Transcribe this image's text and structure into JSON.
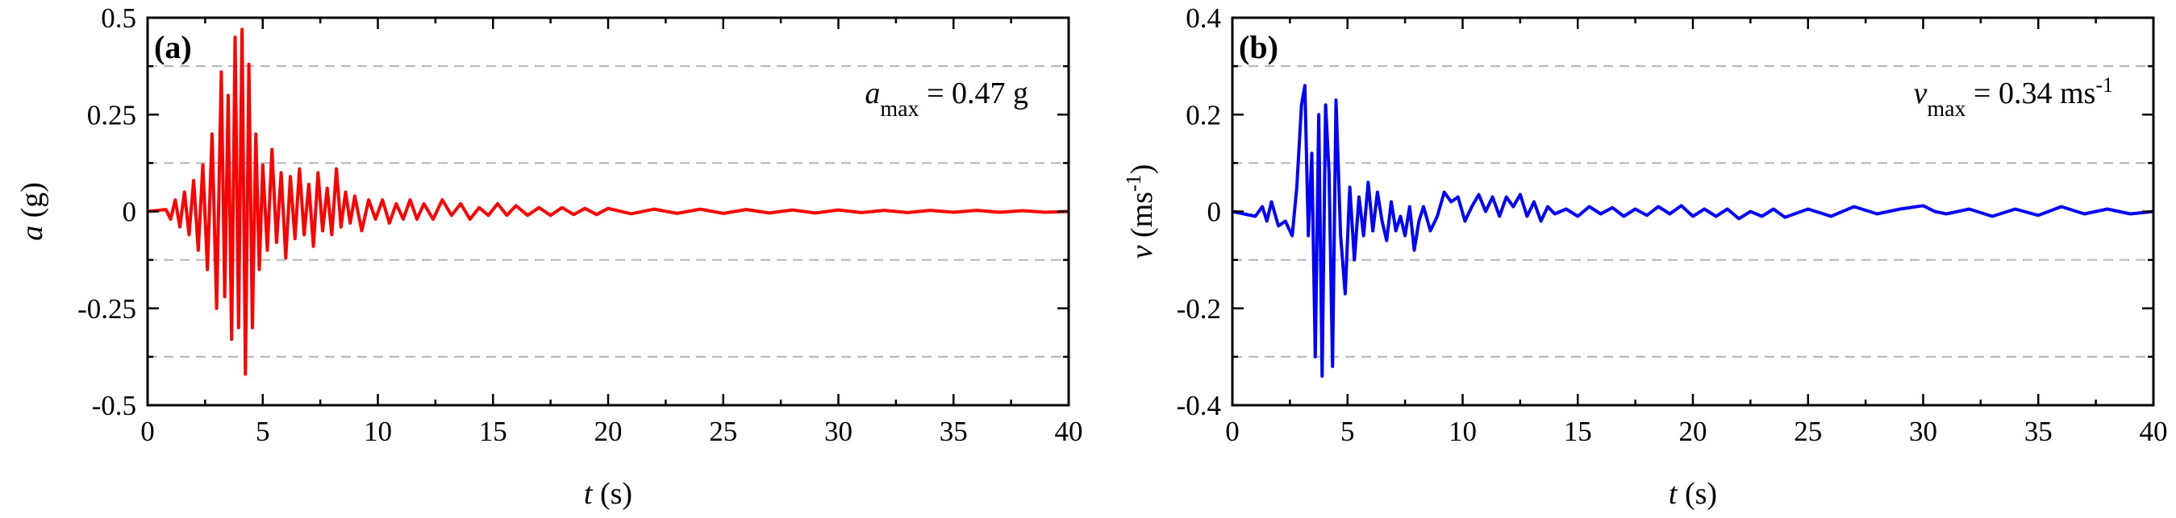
{
  "chart_data": [
    {
      "type": "line",
      "panel_tag": "(a)",
      "xlabel": {
        "italic": "t",
        "rest": " (s)"
      },
      "ylabel": {
        "italic": "a",
        "rest": " (g)"
      },
      "xlim": [
        0,
        40
      ],
      "ylim": [
        -0.5,
        0.5
      ],
      "xticks": [
        "0",
        "5",
        "10",
        "15",
        "20",
        "25",
        "30",
        "35",
        "40"
      ],
      "yticks": [
        "0.5",
        "0.25",
        "0",
        "-0.25",
        "-0.5"
      ],
      "ytick_values": [
        0.5,
        0.25,
        0,
        -0.25,
        -0.5
      ],
      "grid_values": [
        0.375,
        0.125,
        -0.125,
        -0.375
      ],
      "grid": "horizontal dashed",
      "annotation": {
        "base": "a",
        "sub": "max",
        "rest": " = 0.47 g",
        "sup": ""
      },
      "series": [
        {
          "color": "#ff0000",
          "x": [
            0,
            0.8,
            1.0,
            1.2,
            1.4,
            1.6,
            1.8,
            2.0,
            2.2,
            2.4,
            2.6,
            2.8,
            3.0,
            3.2,
            3.35,
            3.5,
            3.65,
            3.8,
            3.95,
            4.1,
            4.25,
            4.4,
            4.55,
            4.7,
            4.85,
            5.0,
            5.2,
            5.4,
            5.6,
            5.8,
            6.0,
            6.2,
            6.4,
            6.6,
            6.8,
            7.0,
            7.2,
            7.4,
            7.6,
            7.8,
            8.0,
            8.2,
            8.4,
            8.6,
            8.8,
            9.0,
            9.3,
            9.6,
            9.9,
            10.2,
            10.5,
            10.8,
            11.1,
            11.4,
            11.7,
            12.0,
            12.4,
            12.8,
            13.2,
            13.6,
            14.0,
            14.4,
            14.8,
            15.2,
            15.6,
            16.0,
            16.5,
            17.0,
            17.5,
            18.0,
            18.5,
            19.0,
            19.5,
            20.0,
            21.0,
            22.0,
            23.0,
            24.0,
            25.0,
            26.0,
            27.0,
            28.0,
            29.0,
            30.0,
            31.0,
            32.0,
            33.0,
            34.0,
            35.0,
            36.0,
            37.0,
            38.0,
            39.0,
            40.0
          ],
          "y": [
            0,
            0.005,
            -0.02,
            0.03,
            -0.04,
            0.05,
            -0.06,
            0.08,
            -0.1,
            0.12,
            -0.15,
            0.2,
            -0.25,
            0.36,
            -0.22,
            0.3,
            -0.33,
            0.45,
            -0.3,
            0.47,
            -0.42,
            0.38,
            -0.3,
            0.2,
            -0.15,
            0.12,
            -0.1,
            0.16,
            -0.08,
            0.1,
            -0.12,
            0.09,
            -0.07,
            0.11,
            -0.06,
            0.07,
            -0.09,
            0.1,
            -0.05,
            0.06,
            -0.06,
            0.11,
            -0.04,
            0.05,
            -0.03,
            0.04,
            -0.05,
            0.03,
            -0.02,
            0.03,
            -0.03,
            0.02,
            -0.02,
            0.03,
            -0.02,
            0.02,
            -0.02,
            0.03,
            -0.01,
            0.02,
            -0.02,
            0.01,
            -0.01,
            0.02,
            -0.01,
            0.015,
            -0.01,
            0.01,
            -0.01,
            0.01,
            -0.008,
            0.008,
            -0.008,
            0.008,
            -0.006,
            0.006,
            -0.005,
            0.006,
            -0.005,
            0.005,
            -0.004,
            0.004,
            -0.004,
            0.004,
            -0.003,
            0.003,
            -0.003,
            0.003,
            -0.002,
            0.003,
            -0.002,
            0.002,
            -0.002,
            0
          ]
        }
      ]
    },
    {
      "type": "line",
      "panel_tag": "(b)",
      "xlabel": {
        "italic": "t",
        "rest": " (s)"
      },
      "ylabel": {
        "italic": "v",
        "rest": " (ms",
        "sup": "-1",
        "close": ")"
      },
      "xlim": [
        0,
        40
      ],
      "ylim": [
        -0.4,
        0.4
      ],
      "xticks": [
        "0",
        "5",
        "10",
        "15",
        "20",
        "25",
        "30",
        "35",
        "40"
      ],
      "yticks": [
        "0.4",
        "0.2",
        "0",
        "-0.2",
        "-0.4"
      ],
      "ytick_values": [
        0.4,
        0.2,
        0,
        -0.2,
        -0.4
      ],
      "grid_values": [
        0.3,
        0.1,
        -0.1,
        -0.3
      ],
      "grid": "horizontal dashed",
      "annotation": {
        "base": "v",
        "sub": "max",
        "rest": " = 0.34 ms",
        "sup": "-1"
      },
      "series": [
        {
          "color": "#0000ff",
          "x": [
            0,
            0.5,
            1.0,
            1.3,
            1.5,
            1.7,
            2.0,
            2.3,
            2.6,
            2.8,
            3.0,
            3.15,
            3.3,
            3.45,
            3.6,
            3.75,
            3.9,
            4.05,
            4.2,
            4.35,
            4.5,
            4.7,
            4.9,
            5.1,
            5.3,
            5.5,
            5.7,
            5.9,
            6.1,
            6.3,
            6.5,
            6.7,
            6.9,
            7.1,
            7.3,
            7.5,
            7.7,
            7.9,
            8.1,
            8.3,
            8.6,
            8.9,
            9.2,
            9.5,
            9.8,
            10.1,
            10.4,
            10.7,
            11.0,
            11.3,
            11.6,
            11.9,
            12.2,
            12.5,
            12.8,
            13.1,
            13.4,
            13.7,
            14.0,
            14.5,
            15.0,
            15.5,
            16.0,
            16.5,
            17.0,
            17.5,
            18.0,
            18.5,
            19.0,
            19.5,
            20.0,
            20.5,
            21.0,
            21.5,
            22.0,
            22.5,
            23.0,
            23.5,
            24.0,
            25.0,
            26.0,
            27.0,
            28.0,
            29.0,
            30.0,
            30.5,
            31.0,
            32.0,
            33.0,
            34.0,
            35.0,
            36.0,
            37.0,
            38.0,
            39.0,
            40.0
          ],
          "y": [
            0,
            -0.005,
            -0.01,
            0.01,
            -0.02,
            0.02,
            -0.03,
            -0.02,
            -0.05,
            0.05,
            0.22,
            0.26,
            -0.05,
            0.12,
            -0.3,
            0.2,
            -0.34,
            0.22,
            0.08,
            -0.32,
            0.23,
            -0.05,
            -0.17,
            0.05,
            -0.1,
            0.03,
            -0.05,
            0.06,
            -0.04,
            0.04,
            -0.02,
            -0.06,
            0.02,
            -0.04,
            -0.01,
            -0.05,
            0.01,
            -0.08,
            -0.02,
            0.01,
            -0.04,
            -0.01,
            0.04,
            0.02,
            0.03,
            -0.02,
            0.01,
            0.035,
            0.0,
            0.03,
            -0.01,
            0.03,
            0.01,
            0.035,
            -0.01,
            0.02,
            -0.02,
            0.01,
            -0.005,
            0.005,
            -0.01,
            0.01,
            -0.005,
            0.008,
            -0.01,
            0.005,
            -0.008,
            0.01,
            -0.005,
            0.012,
            -0.01,
            0.005,
            -0.01,
            0.005,
            -0.015,
            0.0,
            -0.01,
            0.005,
            -0.012,
            0.005,
            -0.01,
            0.01,
            -0.005,
            0.005,
            0.012,
            0.0,
            -0.005,
            0.005,
            -0.01,
            0.005,
            -0.008,
            0.01,
            -0.005,
            0.005,
            -0.005,
            0.0
          ]
        }
      ]
    }
  ]
}
